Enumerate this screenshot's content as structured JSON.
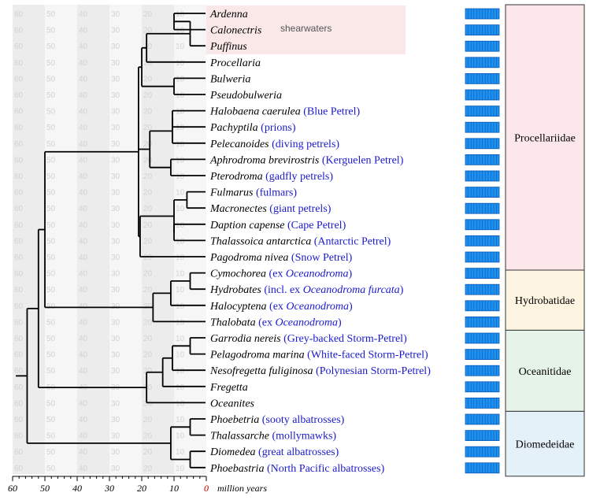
{
  "colors": {
    "highlight": "#fae8e8",
    "grid_band_dark": "#ececec",
    "grid_band_light": "#f6f6f6",
    "grid_number": "#d2d2d2",
    "common_name": "#1a1acc",
    "tree_line": "#000000",
    "bar_fill": "#1e90f0",
    "bar_line": "#0a5ab4",
    "zero_tick": "#cc0000"
  },
  "grid_numbers": [
    "60",
    "50",
    "40",
    "30",
    "20",
    "10"
  ],
  "axis": {
    "ticks": [
      "60",
      "50",
      "40",
      "30",
      "20",
      "10",
      "0"
    ],
    "unit": "million years"
  },
  "highlight_label": "shearwaters",
  "taxa": [
    {
      "genus": "Ardenna",
      "common": []
    },
    {
      "genus": "Calonectris",
      "common": []
    },
    {
      "genus": "Puffinus",
      "common": []
    },
    {
      "genus": "Procellaria",
      "common": []
    },
    {
      "genus": "Bulweria",
      "common": []
    },
    {
      "genus": "Pseudobulweria",
      "common": []
    },
    {
      "genus": "Halobaena caerulea",
      "common": [
        {
          "t": "(Blue Petrel)",
          "i": false
        }
      ]
    },
    {
      "genus": "Pachyptila",
      "common": [
        {
          "t": "(prions)",
          "i": false
        }
      ]
    },
    {
      "genus": "Pelecanoides",
      "common": [
        {
          "t": "(diving petrels)",
          "i": false
        }
      ]
    },
    {
      "genus": "Aphrodroma brevirostris",
      "common": [
        {
          "t": "(Kerguelen Petrel)",
          "i": false
        }
      ]
    },
    {
      "genus": "Pterodroma",
      "common": [
        {
          "t": "(gadfly petrels)",
          "i": false
        }
      ]
    },
    {
      "genus": "Fulmarus",
      "common": [
        {
          "t": "(fulmars)",
          "i": false
        }
      ]
    },
    {
      "genus": "Macronectes",
      "common": [
        {
          "t": "(giant petrels)",
          "i": false
        }
      ]
    },
    {
      "genus": "Daption capense",
      "common": [
        {
          "t": "(Cape Petrel)",
          "i": false
        }
      ]
    },
    {
      "genus": "Thalassoica antarctica",
      "common": [
        {
          "t": "(Antarctic Petrel)",
          "i": false
        }
      ]
    },
    {
      "genus": "Pagodroma nivea",
      "common": [
        {
          "t": "(Snow Petrel)",
          "i": false
        }
      ]
    },
    {
      "genus": "Cymochorea",
      "common": [
        {
          "t": "(ex ",
          "i": false
        },
        {
          "t": "Oceanodroma",
          "i": true
        },
        {
          "t": ")",
          "i": false
        }
      ]
    },
    {
      "genus": "Hydrobates",
      "common": [
        {
          "t": "(incl. ex ",
          "i": false
        },
        {
          "t": "Oceanodroma furcata",
          "i": true
        },
        {
          "t": ")",
          "i": false
        }
      ]
    },
    {
      "genus": "Halocyptena",
      "common": [
        {
          "t": "(ex ",
          "i": false
        },
        {
          "t": "Oceanodroma",
          "i": true
        },
        {
          "t": ")",
          "i": false
        }
      ]
    },
    {
      "genus": "Thalobata",
      "common": [
        {
          "t": "(ex ",
          "i": false
        },
        {
          "t": "Oceanodroma",
          "i": true
        },
        {
          "t": ")",
          "i": false
        }
      ]
    },
    {
      "genus": "Garrodia nereis",
      "common": [
        {
          "t": "(Grey-backed Storm-Petrel)",
          "i": false
        }
      ]
    },
    {
      "genus": "Pelagodroma marina",
      "common": [
        {
          "t": "(White-faced Storm-Petrel)",
          "i": false
        }
      ]
    },
    {
      "genus": "Nesofregetta fuliginosa",
      "common": [
        {
          "t": "(Polynesian Storm-Petrel)",
          "i": false
        }
      ]
    },
    {
      "genus": "Fregetta",
      "common": []
    },
    {
      "genus": "Oceanites",
      "common": []
    },
    {
      "genus": "Phoebetria",
      "common": [
        {
          "t": "(sooty albatrosses)",
          "i": false
        }
      ]
    },
    {
      "genus": "Thalassarche",
      "common": [
        {
          "t": "(mollymawks)",
          "i": false
        }
      ]
    },
    {
      "genus": "Diomedea",
      "common": [
        {
          "t": "(great albatrosses)",
          "i": false
        }
      ]
    },
    {
      "genus": "Phoebastria",
      "common": [
        {
          "t": "(North Pacific albatrosses)",
          "i": false
        }
      ]
    }
  ],
  "families": [
    {
      "name": "Procellariidae",
      "bg": "#fce8ea"
    },
    {
      "name": "Hydrobatidae",
      "bg": "#fdf5e2"
    },
    {
      "name": "Oceanitidae",
      "bg": "#e5f3e9"
    },
    {
      "name": "Diomedeidae",
      "bg": "#e5f1f9"
    }
  ]
}
